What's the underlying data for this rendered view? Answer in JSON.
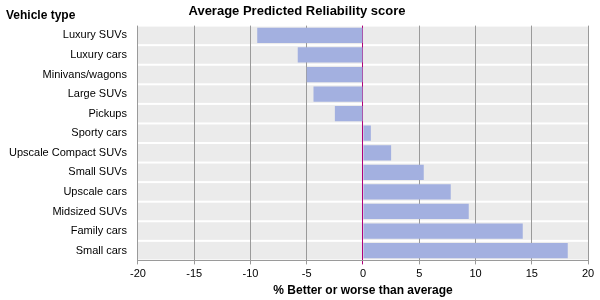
{
  "chart_data": {
    "type": "bar",
    "orientation": "horizontal",
    "title": "Average Predicted Reliability score",
    "xlabel": "% Better or worse than average",
    "ylabel": "Vehicle type",
    "categories": [
      "Luxury SUVs",
      "Luxury cars",
      "Minivans/wagons",
      "Large SUVs",
      "Pickups",
      "Sporty cars",
      "Upscale Compact SUVs",
      "Small SUVs",
      "Upscale cars",
      "Midsized SUVs",
      "Family cars",
      "Small cars"
    ],
    "values": [
      -9.4,
      -5.8,
      -5.0,
      -4.4,
      -2.5,
      0.7,
      2.5,
      5.4,
      7.8,
      9.4,
      14.2,
      18.2
    ],
    "color": "#a3b0e0",
    "xlim": [
      -20,
      20
    ],
    "xticks": [
      -20,
      -15,
      -10,
      -5,
      0,
      5,
      10,
      15,
      20
    ],
    "grid": true
  }
}
